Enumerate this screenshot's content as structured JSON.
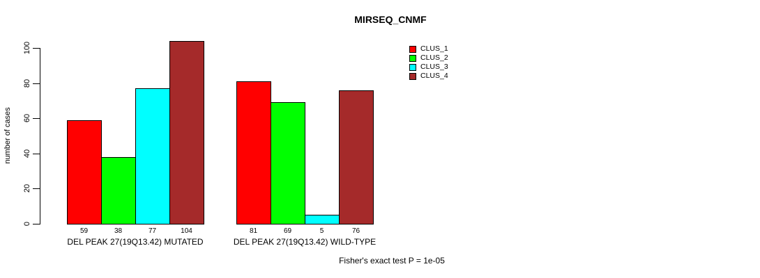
{
  "chart_data": {
    "type": "bar",
    "title": "MIRSEQ_CNMF",
    "ylabel": "number of cases",
    "ylim": [
      0,
      100
    ],
    "yticks": [
      0,
      20,
      40,
      60,
      80,
      100
    ],
    "grid": false,
    "legend_position": "top-right",
    "bar_border_color": "#000000",
    "background_color": "#ffffff",
    "groups": [
      {
        "label": "DEL PEAK 27(19Q13.42) MUTATED",
        "values": [
          59,
          38,
          77,
          104
        ]
      },
      {
        "label": "DEL PEAK 27(19Q13.42) WILD-TYPE",
        "values": [
          81,
          69,
          5,
          76
        ]
      }
    ],
    "legend": [
      {
        "label": "CLUS_1",
        "color": "#FF0000"
      },
      {
        "label": "CLUS_2",
        "color": "#00FF00"
      },
      {
        "label": "CLUS_3",
        "color": "#00FFFF"
      },
      {
        "label": "CLUS_4",
        "color": "#A52A2A"
      }
    ],
    "footnote": "Fisher's exact test P = 1e-05"
  }
}
